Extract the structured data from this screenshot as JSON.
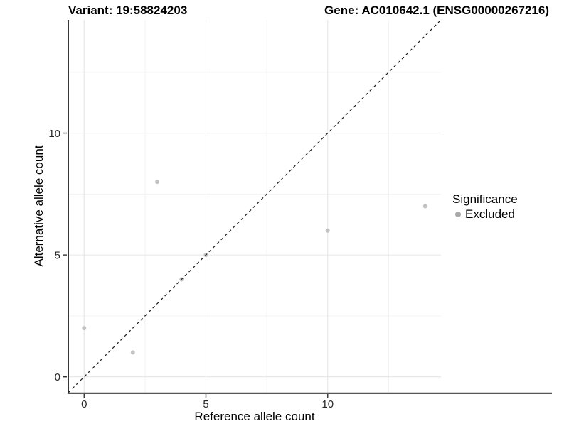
{
  "chart_data": {
    "type": "scatter",
    "title_left": "Variant: 19:58824203",
    "title_right": "Gene: AC010642.1 (ENSG00000267216)",
    "xlabel": "Reference allele count",
    "ylabel": "Alternative allele count",
    "xlim": [
      -0.65,
      14.65
    ],
    "ylim": [
      -0.65,
      14.65
    ],
    "x_ticks": [
      0,
      5,
      10
    ],
    "y_ticks": [
      0,
      5,
      10
    ],
    "minor_gridlines": [
      2.5,
      7.5,
      12.5
    ],
    "grid": true,
    "points": [
      {
        "x": 0,
        "y": 2
      },
      {
        "x": 2,
        "y": 1
      },
      {
        "x": 3,
        "y": 8
      },
      {
        "x": 4,
        "y": 4
      },
      {
        "x": 5,
        "y": 5
      },
      {
        "x": 10,
        "y": 6
      },
      {
        "x": 14,
        "y": 7
      }
    ],
    "identity_line": {
      "type": "abline",
      "slope": 1,
      "intercept": 0,
      "style": "dashed"
    },
    "legend": {
      "title": "Significance",
      "position": "right-inside",
      "items": [
        {
          "label": "Excluded",
          "color": "#a9a9a9",
          "shape": "circle"
        }
      ]
    },
    "colors": {
      "point": "#c3c3c3",
      "grid_major": "#e6e6e6",
      "grid_minor": "#f1f1f1",
      "axis_left": "#222222",
      "axis_bottom": "#555555",
      "tick": "#333333",
      "line": "#1a1a1a",
      "text": "#000000"
    }
  }
}
